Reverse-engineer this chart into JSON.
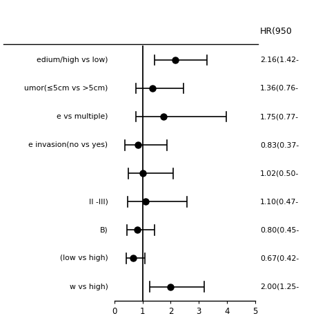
{
  "header_text": "HR(950",
  "rows": [
    {
      "label": "edium/high vs low)",
      "hr": 2.16,
      "ci_low": 1.42,
      "ci_high": 3.3,
      "hr_text": "2.16(1.42-"
    },
    {
      "label": "umor(≤5cm vs >5cm)",
      "hr": 1.36,
      "ci_low": 0.76,
      "ci_high": 2.45,
      "hr_text": "1.36(0.76-"
    },
    {
      "label": "e vs multiple)",
      "hr": 1.75,
      "ci_low": 0.77,
      "ci_high": 3.98,
      "hr_text": "1.75(0.77-"
    },
    {
      "label": "e invasion(no vs yes)",
      "hr": 0.83,
      "ci_low": 0.37,
      "ci_high": 1.87,
      "hr_text": "0.83(0.37-"
    },
    {
      "label": "",
      "hr": 1.02,
      "ci_low": 0.5,
      "ci_high": 2.08,
      "hr_text": "1.02(0.50-"
    },
    {
      "label": "II -III)",
      "hr": 1.1,
      "ci_low": 0.47,
      "ci_high": 2.57,
      "hr_text": "1.10(0.47-"
    },
    {
      "label": "B)",
      "hr": 0.8,
      "ci_low": 0.45,
      "ci_high": 1.42,
      "hr_text": "0.80(0.45-"
    },
    {
      "label": "(low vs high)",
      "hr": 0.67,
      "ci_low": 0.42,
      "ci_high": 1.07,
      "hr_text": "0.67(0.42-"
    },
    {
      "label": "w vs high)",
      "hr": 2.0,
      "ci_low": 1.25,
      "ci_high": 3.2,
      "hr_text": "2.00(1.25-"
    }
  ],
  "xmin": 0,
  "xmax": 5,
  "xticks": [
    0,
    1,
    2,
    3,
    4,
    5
  ],
  "reference_line": 1,
  "dot_color": "black",
  "line_color": "black",
  "bg_color": "white",
  "label_fontsize": 7.8,
  "tick_fontsize": 8.5,
  "header_fontsize": 9
}
